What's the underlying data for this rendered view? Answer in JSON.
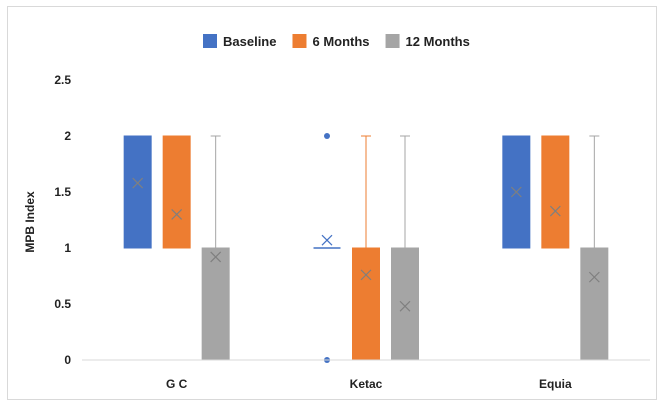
{
  "chart_data": {
    "type": "box",
    "ylabel": "MPB Index",
    "ylim": [
      0,
      2.5
    ],
    "yticks": [
      "0",
      "0.5",
      "1",
      "1.5",
      "2",
      "2.5"
    ],
    "grid": false,
    "legend_position": "top",
    "categories": [
      "G C",
      "Ketac",
      "Equia"
    ],
    "series": [
      {
        "name": "Baseline",
        "color": "#4472c4",
        "boxes": [
          {
            "q1": 1,
            "q3": 2,
            "median": 2,
            "whisker_low": 1,
            "whisker_high": 2,
            "mean": 1.58,
            "outliers": []
          },
          {
            "q1": 1,
            "q3": 1,
            "median": 1,
            "whisker_low": 1,
            "whisker_high": 1,
            "mean": 1.07,
            "outliers": [
              2,
              0
            ]
          },
          {
            "q1": 1,
            "q3": 2,
            "median": 2,
            "whisker_low": 1,
            "whisker_high": 2,
            "mean": 1.5,
            "outliers": []
          }
        ]
      },
      {
        "name": "6 Months",
        "color": "#ed7d31",
        "boxes": [
          {
            "q1": 1,
            "q3": 2,
            "median": 2,
            "whisker_low": 1,
            "whisker_high": 2,
            "mean": 1.3,
            "outliers": []
          },
          {
            "q1": 0,
            "q3": 1,
            "median": 1,
            "whisker_low": 0,
            "whisker_high": 2,
            "mean": 0.76,
            "outliers": []
          },
          {
            "q1": 1,
            "q3": 2,
            "median": 2,
            "whisker_low": 1,
            "whisker_high": 2,
            "mean": 1.33,
            "outliers": []
          }
        ]
      },
      {
        "name": "12 Months",
        "color": "#a5a5a5",
        "boxes": [
          {
            "q1": 0,
            "q3": 1,
            "median": 1,
            "whisker_low": 0,
            "whisker_high": 2,
            "mean": 0.92,
            "outliers": []
          },
          {
            "q1": 0,
            "q3": 1,
            "median": 1,
            "whisker_low": 0,
            "whisker_high": 2,
            "mean": 0.48,
            "outliers": []
          },
          {
            "q1": 0,
            "q3": 1,
            "median": 1,
            "whisker_low": 0,
            "whisker_high": 2,
            "mean": 0.74,
            "outliers": []
          }
        ]
      }
    ]
  }
}
